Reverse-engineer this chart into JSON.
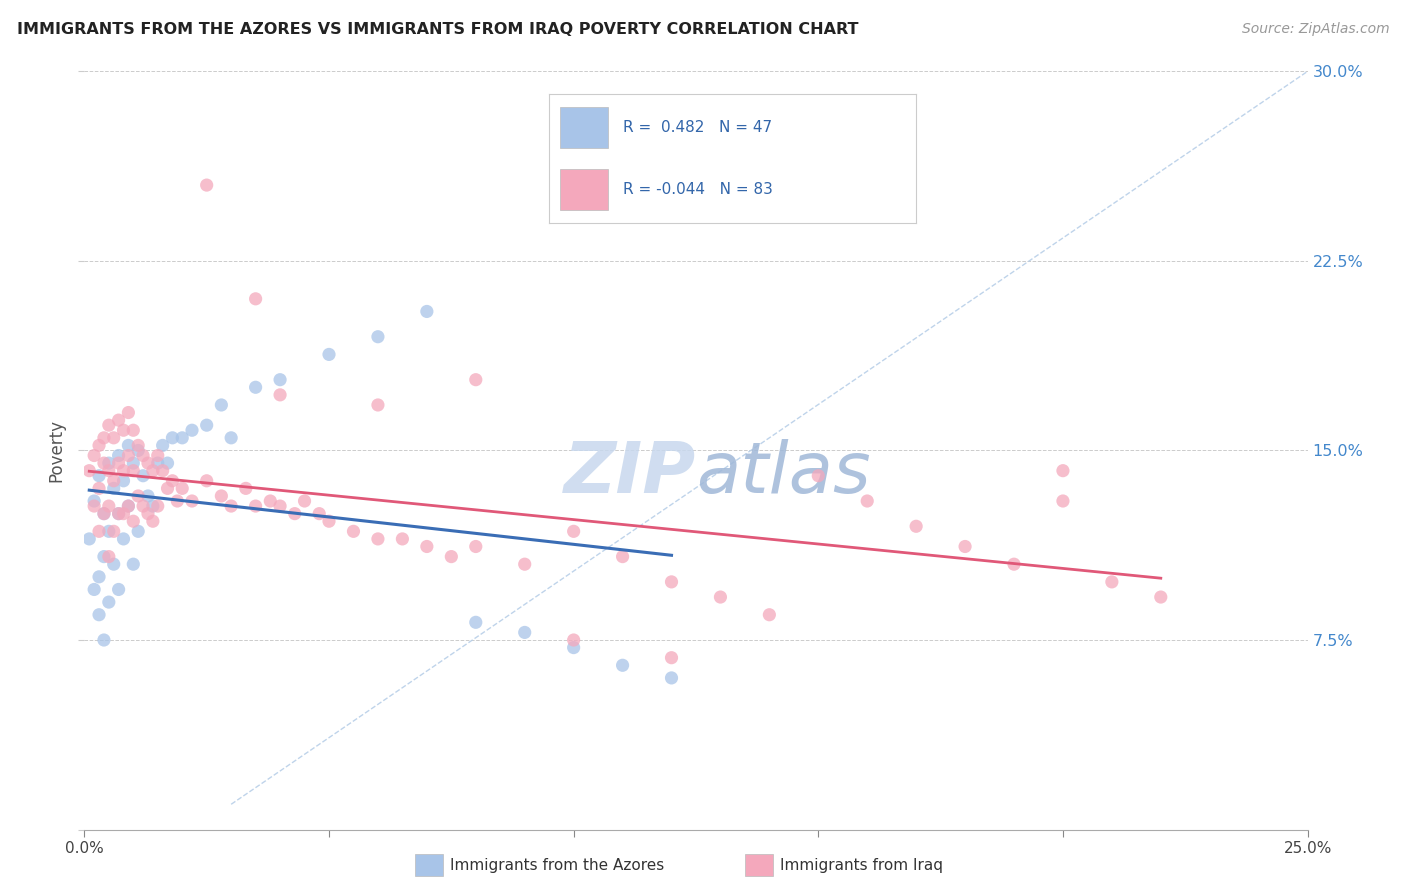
{
  "title": "IMMIGRANTS FROM THE AZORES VS IMMIGRANTS FROM IRAQ POVERTY CORRELATION CHART",
  "source": "Source: ZipAtlas.com",
  "ylabel": "Poverty",
  "xlim": [
    0.0,
    0.25
  ],
  "ylim": [
    0.0,
    0.3
  ],
  "color_azores": "#a8c4e8",
  "color_iraq": "#f4a8bc",
  "line_color_azores": "#3a6db5",
  "line_color_iraq": "#e05878",
  "diag_line_color": "#b8cfe8",
  "watermark_zip": "ZIP",
  "watermark_atlas": "atlas",
  "azores_x": [
    0.001,
    0.002,
    0.002,
    0.003,
    0.003,
    0.003,
    0.004,
    0.004,
    0.004,
    0.005,
    0.005,
    0.005,
    0.006,
    0.006,
    0.007,
    0.007,
    0.007,
    0.008,
    0.008,
    0.009,
    0.009,
    0.01,
    0.01,
    0.011,
    0.011,
    0.012,
    0.013,
    0.014,
    0.015,
    0.016,
    0.017,
    0.018,
    0.02,
    0.022,
    0.025,
    0.028,
    0.03,
    0.035,
    0.04,
    0.05,
    0.06,
    0.07,
    0.08,
    0.09,
    0.1,
    0.11,
    0.12
  ],
  "azores_y": [
    0.115,
    0.13,
    0.095,
    0.14,
    0.1,
    0.085,
    0.125,
    0.108,
    0.075,
    0.145,
    0.118,
    0.09,
    0.135,
    0.105,
    0.148,
    0.125,
    0.095,
    0.138,
    0.115,
    0.152,
    0.128,
    0.145,
    0.105,
    0.15,
    0.118,
    0.14,
    0.132,
    0.128,
    0.145,
    0.152,
    0.145,
    0.155,
    0.155,
    0.158,
    0.16,
    0.168,
    0.155,
    0.175,
    0.178,
    0.188,
    0.195,
    0.205,
    0.082,
    0.078,
    0.072,
    0.065,
    0.06
  ],
  "iraq_x": [
    0.001,
    0.002,
    0.002,
    0.003,
    0.003,
    0.003,
    0.004,
    0.004,
    0.004,
    0.005,
    0.005,
    0.005,
    0.005,
    0.006,
    0.006,
    0.006,
    0.007,
    0.007,
    0.007,
    0.008,
    0.008,
    0.008,
    0.009,
    0.009,
    0.009,
    0.01,
    0.01,
    0.01,
    0.011,
    0.011,
    0.012,
    0.012,
    0.013,
    0.013,
    0.014,
    0.014,
    0.015,
    0.015,
    0.016,
    0.017,
    0.018,
    0.019,
    0.02,
    0.022,
    0.025,
    0.028,
    0.03,
    0.033,
    0.035,
    0.038,
    0.04,
    0.043,
    0.045,
    0.048,
    0.05,
    0.055,
    0.06,
    0.065,
    0.07,
    0.075,
    0.08,
    0.09,
    0.1,
    0.11,
    0.12,
    0.13,
    0.14,
    0.15,
    0.16,
    0.17,
    0.18,
    0.19,
    0.2,
    0.21,
    0.22,
    0.04,
    0.06,
    0.08,
    0.1,
    0.12,
    0.025,
    0.035,
    0.2
  ],
  "iraq_y": [
    0.142,
    0.148,
    0.128,
    0.152,
    0.135,
    0.118,
    0.145,
    0.155,
    0.125,
    0.16,
    0.142,
    0.128,
    0.108,
    0.155,
    0.138,
    0.118,
    0.162,
    0.145,
    0.125,
    0.158,
    0.142,
    0.125,
    0.165,
    0.148,
    0.128,
    0.158,
    0.142,
    0.122,
    0.152,
    0.132,
    0.148,
    0.128,
    0.145,
    0.125,
    0.142,
    0.122,
    0.148,
    0.128,
    0.142,
    0.135,
    0.138,
    0.13,
    0.135,
    0.13,
    0.138,
    0.132,
    0.128,
    0.135,
    0.128,
    0.13,
    0.128,
    0.125,
    0.13,
    0.125,
    0.122,
    0.118,
    0.115,
    0.115,
    0.112,
    0.108,
    0.112,
    0.105,
    0.118,
    0.108,
    0.098,
    0.092,
    0.085,
    0.14,
    0.13,
    0.12,
    0.112,
    0.105,
    0.13,
    0.098,
    0.092,
    0.172,
    0.168,
    0.178,
    0.075,
    0.068,
    0.255,
    0.21,
    0.142
  ]
}
